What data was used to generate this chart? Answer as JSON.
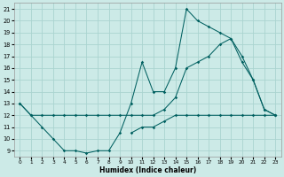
{
  "xlabel": "Humidex (Indice chaleur)",
  "bg_color": "#cceae7",
  "grid_color": "#aad4d0",
  "line_color": "#006060",
  "xlim": [
    -0.5,
    23.5
  ],
  "ylim": [
    8.5,
    21.5
  ],
  "yticks": [
    9,
    10,
    11,
    12,
    13,
    14,
    15,
    16,
    17,
    18,
    19,
    20,
    21
  ],
  "xticks": [
    0,
    1,
    2,
    3,
    4,
    5,
    6,
    7,
    8,
    9,
    10,
    11,
    12,
    13,
    14,
    15,
    16,
    17,
    18,
    19,
    20,
    21,
    22,
    23
  ],
  "line1_x": [
    0,
    1,
    2,
    3,
    4,
    5,
    6,
    7,
    8,
    9,
    10,
    11,
    12,
    13,
    14,
    15,
    16,
    17,
    18,
    19,
    20,
    21,
    22,
    23
  ],
  "line1_y": [
    13,
    12,
    11,
    10,
    9,
    9,
    8.8,
    9,
    9,
    10.5,
    13,
    16.5,
    14,
    14,
    16,
    21,
    20,
    19.5,
    19,
    18.5,
    17,
    15,
    12.5,
    12
  ],
  "line2_x": [
    0,
    1,
    2,
    3,
    4,
    5,
    6,
    7,
    8,
    9,
    10,
    11,
    12,
    13,
    14,
    15,
    16,
    17,
    18,
    19,
    20,
    21,
    22,
    23
  ],
  "line2_y": [
    13,
    12,
    12,
    12,
    12,
    12,
    12,
    12,
    12,
    12,
    12,
    12,
    12,
    12.5,
    13.5,
    16,
    16.5,
    17,
    18,
    18.5,
    16.5,
    15,
    12.5,
    12
  ],
  "line3_x": [
    10,
    11,
    12,
    13,
    14,
    15,
    16,
    17,
    18,
    19,
    20,
    21,
    22,
    23
  ],
  "line3_y": [
    10.5,
    11,
    11,
    11.5,
    12,
    12,
    12,
    12,
    12,
    12,
    12,
    12,
    12,
    12
  ]
}
